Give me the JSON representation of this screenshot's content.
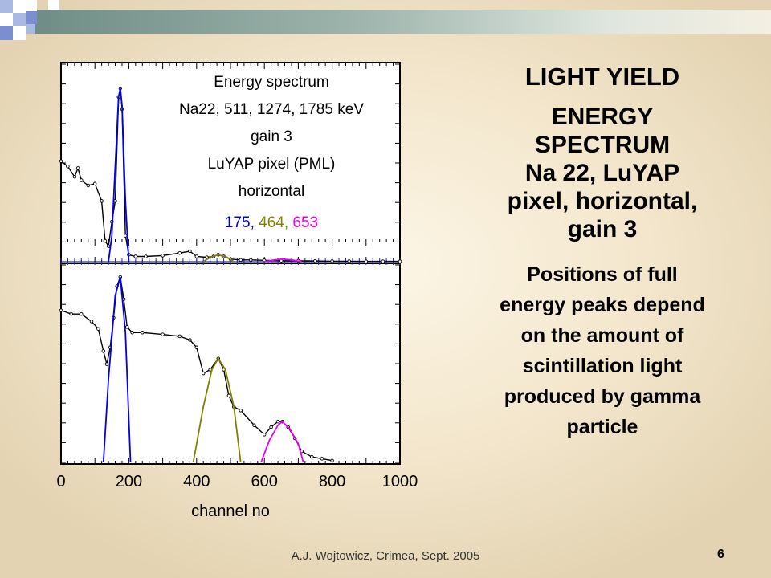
{
  "slide": {
    "heading": "LIGHT YIELD",
    "subheading_lines": [
      "ENERGY",
      "SPECTRUM",
      "Na 22, LuYAP",
      "pixel, horizontal,",
      "gain 3"
    ],
    "description_lines": [
      "Positions of full",
      "energy peaks depend",
      "on the amount of",
      "scintillation light",
      "produced by gamma",
      "particle"
    ],
    "footer": "A.J. Wojtowicz, Crimea, Sept. 2005",
    "page_number": "6"
  },
  "chart_data": {
    "type": "line",
    "xlabel": "channel no",
    "xlim": [
      0,
      1000
    ],
    "x_ticks": [
      0,
      200,
      400,
      600,
      800,
      1000
    ],
    "annotation_lines": [
      "Energy spectrum",
      "Na22, 511, 1274, 1785 keV",
      "gain 3",
      "LuYAP pixel (PML)",
      "horizontal"
    ],
    "peak_positions": [
      {
        "value": "175",
        "color": "#0000ee"
      },
      {
        "value": "464",
        "color": "#808000"
      },
      {
        "value": "653",
        "color": "#ee00ee"
      }
    ],
    "panels": [
      {
        "scale": "linear",
        "series": [
          {
            "kind": "data",
            "color": "#000000",
            "x": [
              0,
              20,
              40,
              50,
              60,
              80,
              100,
              120,
              130,
              140,
              150,
              160,
              170,
              175,
              180,
              190,
              200,
              220,
              250,
              300,
              350,
              380,
              400,
              430,
              450,
              464,
              480,
              500,
              530,
              560,
              600,
              650,
              700,
              750,
              800,
              850,
              900,
              950,
              1000
            ],
            "y": [
              0.58,
              0.55,
              0.49,
              0.54,
              0.47,
              0.44,
              0.45,
              0.35,
              0.12,
              0.09,
              0.23,
              0.35,
              0.95,
              1.0,
              0.88,
              0.15,
              0.04,
              0.03,
              0.03,
              0.035,
              0.05,
              0.06,
              0.03,
              0.025,
              0.03,
              0.04,
              0.03,
              0.015,
              0.01,
              0.01,
              0.008,
              0.006,
              0.005,
              0.004,
              0.003,
              0.003,
              0.002,
              0.002,
              0.002
            ]
          },
          {
            "kind": "fit",
            "color": "#0000ee",
            "x": [
              140,
              150,
              160,
              170,
              175,
              180,
              190,
              200
            ],
            "y": [
              0.0,
              0.15,
              0.55,
              0.95,
              1.0,
              0.9,
              0.35,
              0.0
            ]
          },
          {
            "kind": "fit",
            "color": "#808000",
            "x": [
              420,
              440,
              464,
              490,
              510
            ],
            "y": [
              0.0,
              0.025,
              0.04,
              0.025,
              0.0
            ]
          },
          {
            "kind": "fit",
            "color": "#ee00ee",
            "x": [
              600,
              630,
              653,
              680,
              710
            ],
            "y": [
              0.0,
              0.01,
              0.015,
              0.01,
              0.0
            ]
          }
        ]
      },
      {
        "scale": "log",
        "series": [
          {
            "kind": "data",
            "color": "#000000",
            "x": [
              0,
              30,
              60,
              90,
              110,
              125,
              135,
              145,
              155,
              165,
              175,
              185,
              195,
              210,
              240,
              300,
              350,
              380,
              400,
              420,
              440,
              464,
              480,
              495,
              510,
              530,
              570,
              600,
              620,
              640,
              653,
              670,
              690,
              710,
              740,
              770,
              800
            ],
            "y": [
              0.82,
              0.8,
              0.8,
              0.76,
              0.72,
              0.6,
              0.53,
              0.62,
              0.78,
              0.95,
              1.0,
              0.88,
              0.73,
              0.7,
              0.7,
              0.69,
              0.68,
              0.66,
              0.62,
              0.48,
              0.5,
              0.56,
              0.5,
              0.36,
              0.3,
              0.28,
              0.2,
              0.15,
              0.19,
              0.22,
              0.22,
              0.19,
              0.13,
              0.06,
              0.03,
              0.02,
              0.01
            ]
          },
          {
            "kind": "fit",
            "color": "#0000ee",
            "x": [
              125,
              140,
              160,
              175,
              190,
              205
            ],
            "y": [
              0.0,
              0.45,
              0.9,
              1.0,
              0.7,
              0.0
            ]
          },
          {
            "kind": "fit",
            "color": "#808000",
            "x": [
              390,
              420,
              445,
              464,
              485,
              510,
              530
            ],
            "y": [
              0.0,
              0.3,
              0.5,
              0.56,
              0.5,
              0.3,
              0.0
            ]
          },
          {
            "kind": "fit",
            "color": "#ee00ee",
            "x": [
              590,
              615,
              640,
              653,
              675,
              700,
              715
            ],
            "y": [
              0.0,
              0.12,
              0.2,
              0.22,
              0.18,
              0.1,
              0.0
            ]
          }
        ]
      }
    ]
  }
}
